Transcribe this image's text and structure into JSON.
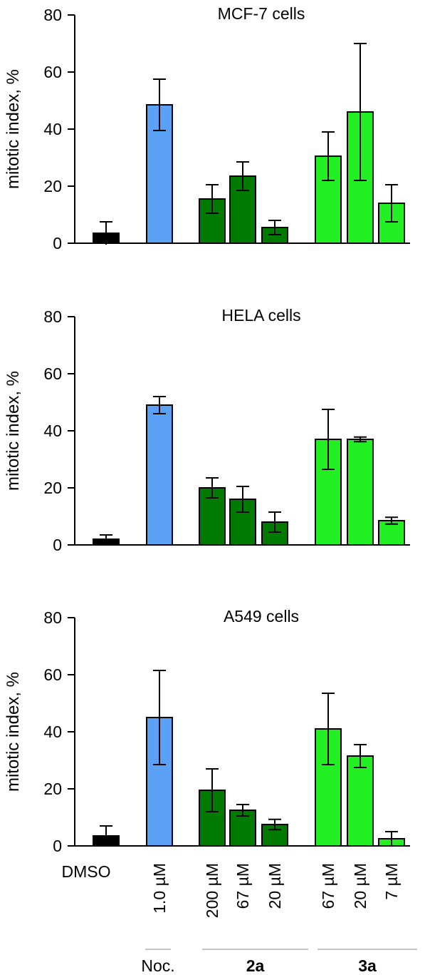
{
  "chart_data": {
    "type": "bar",
    "categories": [
      "DMSO",
      "1.0 µM",
      "200 µM",
      "67 µM",
      "20 µM",
      "67 µM",
      "20 µM",
      "7 µM"
    ],
    "groups": [
      {
        "label": "Noc.",
        "bold": false,
        "from": 1,
        "to": 1
      },
      {
        "label": "2a",
        "bold": true,
        "from": 2,
        "to": 4
      },
      {
        "label": "3a",
        "bold": true,
        "from": 5,
        "to": 7
      }
    ],
    "colors": [
      "#000000",
      "#5aa0f5",
      "#007a00",
      "#007a00",
      "#007a00",
      "#22f022",
      "#22f022",
      "#22f022"
    ],
    "panels": [
      {
        "title": "MCF-7 cells",
        "ylabel": "mitotic index, %",
        "ylim": [
          0,
          80
        ],
        "yticks": [
          "0",
          "20",
          "40",
          "60",
          "80"
        ],
        "values": [
          3.5,
          48.5,
          15.5,
          23.5,
          5.5,
          30.5,
          46,
          14
        ],
        "errors": [
          4,
          9,
          5,
          5,
          2.5,
          8.5,
          24,
          6.5
        ]
      },
      {
        "title": "HELA cells",
        "ylabel": "mitotic index, %",
        "ylim": [
          0,
          80
        ],
        "yticks": [
          "0",
          "20",
          "40",
          "60",
          "80"
        ],
        "values": [
          2,
          49,
          20,
          16,
          8,
          37,
          37,
          8.5
        ],
        "errors": [
          1.5,
          3,
          3.5,
          4.5,
          3.5,
          10.5,
          0.8,
          1.2
        ]
      },
      {
        "title": "A549 cells",
        "ylabel": "mitotic index, %",
        "ylim": [
          0,
          80
        ],
        "yticks": [
          "0",
          "20",
          "40",
          "60",
          "80"
        ],
        "values": [
          3.5,
          45,
          19.5,
          12.5,
          7.5,
          41,
          31.5,
          2.5
        ],
        "errors": [
          3.5,
          16.5,
          7.5,
          2,
          1.8,
          12.5,
          4,
          2.5
        ]
      }
    ]
  }
}
